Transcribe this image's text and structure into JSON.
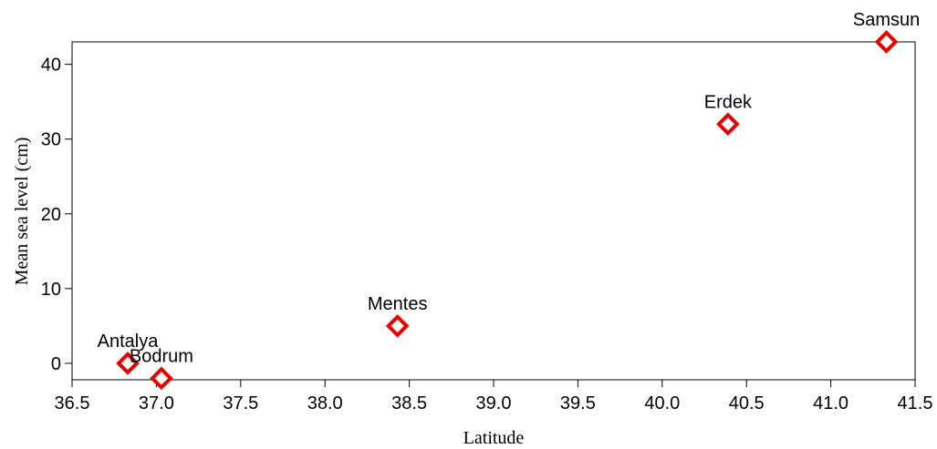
{
  "chart_data": {
    "type": "scatter",
    "title": "",
    "xlabel": "Latitude",
    "ylabel": "Mean sea level (cm)",
    "xlim": [
      36.5,
      41.5
    ],
    "ylim": [
      -2.2,
      43
    ],
    "x_ticks": [
      36.5,
      37.0,
      37.5,
      38.0,
      38.5,
      39.0,
      39.5,
      40.0,
      40.5,
      41.0,
      41.5
    ],
    "x_tick_labels": [
      "36.5",
      "37.0",
      "37.5",
      "38.0",
      "38.5",
      "39.0",
      "39.5",
      "40.0",
      "40.5",
      "41.0",
      "41.5"
    ],
    "y_ticks": [
      0,
      10,
      20,
      30,
      40
    ],
    "y_tick_labels": [
      "0",
      "10",
      "20",
      "30",
      "40"
    ],
    "grid": false,
    "legend": "none",
    "marker": "diamond",
    "marker_color": "#e60000",
    "points": [
      {
        "label": "Antalya",
        "x": 36.83,
        "y": 0
      },
      {
        "label": "Bodrum",
        "x": 37.03,
        "y": -2
      },
      {
        "label": "Mentes",
        "x": 38.43,
        "y": 5
      },
      {
        "label": "Erdek",
        "x": 40.39,
        "y": 32
      },
      {
        "label": "Samsun",
        "x": 41.33,
        "y": 43
      }
    ]
  }
}
